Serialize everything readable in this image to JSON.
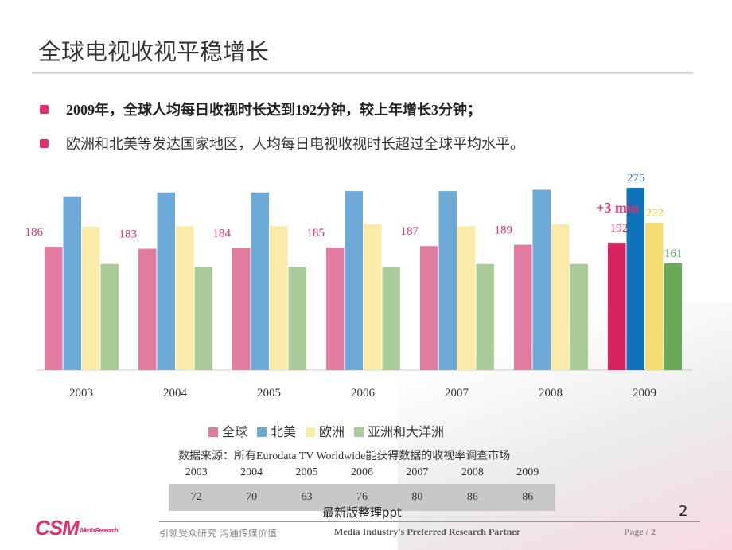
{
  "title": "全球电视收视平稳增长",
  "bullets": [
    "2009年，全球人均每日收视时长达到192分钟，较上年增长3分钟；",
    "欧洲和北美等发达国家地区，人均每日电视收视时长超过全球平均水平。"
  ],
  "chart_data": {
    "type": "bar",
    "categories": [
      "2003",
      "2004",
      "2005",
      "2006",
      "2007",
      "2008",
      "2009"
    ],
    "series": [
      {
        "name": "全球",
        "values": [
          186,
          183,
          184,
          185,
          187,
          189,
          192
        ],
        "color": "#e27ba0",
        "highlight": "#d6245e",
        "labeled": [
          true,
          true,
          true,
          true,
          true,
          true,
          true
        ]
      },
      {
        "name": "北美",
        "values": [
          262,
          268,
          268,
          270,
          270,
          272,
          275
        ],
        "color": "#6eaad8",
        "highlight": "#0e73b9",
        "labeled": [
          false,
          false,
          false,
          false,
          false,
          false,
          true
        ]
      },
      {
        "name": "欧洲",
        "values": [
          216,
          217,
          217,
          220,
          217,
          220,
          222
        ],
        "color": "#faeba8",
        "highlight": "#f5dc73",
        "labeled": [
          false,
          false,
          false,
          false,
          false,
          false,
          true
        ]
      },
      {
        "name": "亚洲和大洋洲",
        "values": [
          160,
          155,
          156,
          155,
          160,
          160,
          161
        ],
        "color": "#a9cc9a",
        "highlight": "#6aaa57",
        "labeled": [
          false,
          false,
          false,
          false,
          false,
          false,
          true
        ]
      }
    ],
    "label_colors": [
      "#e0306e",
      "#2a78c8",
      "#f0c020",
      "#4a9a4a"
    ],
    "annotation": "+3 min",
    "annotation_color": "#e0306e",
    "ylim": [
      0,
      290
    ],
    "legend": "bottom"
  },
  "source": "数据来源：所有Eurodata TV Worldwide能获得数据的收视率调查市场",
  "table": {
    "years": [
      "2003",
      "2004",
      "2005",
      "2006",
      "2007",
      "2008",
      "2009"
    ],
    "values": [
      "72",
      "70",
      "63",
      "76",
      "80",
      "86",
      "86"
    ]
  },
  "watermark": "最新版整理ppt",
  "footer": {
    "logo": "CSM",
    "logo_sub": "Media Research",
    "slogan": "引领受众研究 沟通传媒价值",
    "tagline": "Media Industry's Preferred Research Partner",
    "page": "Page   / 2",
    "page_number": "2"
  }
}
